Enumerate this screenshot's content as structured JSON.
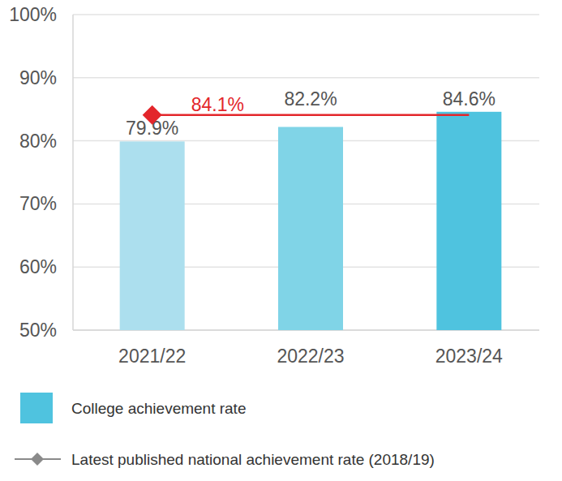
{
  "chart_data": {
    "type": "bar",
    "categories": [
      "2021/22",
      "2022/23",
      "2023/24"
    ],
    "series": [
      {
        "name": "College achievement rate",
        "type": "bar",
        "color": "#4fc3df",
        "colors": [
          "#acdfee",
          "#80d4e7",
          "#4fc3df"
        ],
        "values": [
          79.9,
          82.2,
          84.6
        ],
        "value_labels": [
          "79.9%",
          "82.2%",
          "84.6%"
        ]
      },
      {
        "name": "Latest published national achievement rate (2018/19)",
        "type": "line",
        "color": "#e3262b",
        "marker": "diamond",
        "values": [
          84.1,
          84.1,
          84.1
        ],
        "value_labels": [
          "84.1%",
          null,
          null
        ]
      }
    ],
    "ylim": [
      50,
      100
    ],
    "yticks": [
      {
        "value": 50,
        "label": "50%"
      },
      {
        "value": 60,
        "label": "60%"
      },
      {
        "value": 70,
        "label": "70%"
      },
      {
        "value": 80,
        "label": "80%"
      },
      {
        "value": 90,
        "label": "90%"
      },
      {
        "value": 100,
        "label": "100%"
      }
    ],
    "grid": true,
    "data_labels": true,
    "legend": "bottom-left"
  }
}
